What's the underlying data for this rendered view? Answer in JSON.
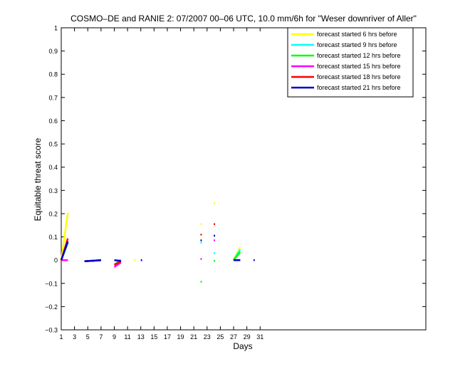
{
  "chart_data": {
    "type": "line",
    "title": "COSMO–DE and RANIE 2: 07/2007 00–06 UTC, 10.0 mm/6h for \"Weser downriver of Aller\"",
    "xlabel": "Days",
    "ylabel": "Equitable threat score",
    "xlim": [
      1,
      56
    ],
    "ylim": [
      -0.3,
      1
    ],
    "xticks": [
      1,
      3,
      5,
      7,
      9,
      11,
      13,
      15,
      17,
      19,
      21,
      23,
      25,
      27,
      29,
      31
    ],
    "yticks": [
      -0.3,
      -0.2,
      -0.1,
      0,
      0.1,
      0.2,
      0.3,
      0.4,
      0.5,
      0.6,
      0.7,
      0.8,
      0.9,
      1
    ],
    "ytick_labels": [
      "−0.3",
      "−0.2",
      "−0.1",
      "0",
      "0.1",
      "0.2",
      "0.3",
      "0.4",
      "0.5",
      "0.6",
      "0.7",
      "0.8",
      "0.9",
      "1"
    ],
    "legend_position": "top-right",
    "grid": false,
    "series": [
      {
        "name": "forecast started 6 hrs before",
        "color": "#ffff00",
        "segments": [
          [
            [
              1,
              0.0
            ],
            [
              2,
              0.205
            ]
          ],
          [
            [
              4.5,
              -0.005
            ],
            [
              7,
              0.0
            ]
          ],
          [
            [
              9,
              -0.02
            ],
            [
              10,
              0.0
            ]
          ],
          [
            [
              12,
              0.0
            ],
            [
              12.2,
              0.0
            ]
          ],
          [
            [
              22,
              0.155
            ],
            [
              22.2,
              0.155
            ]
          ],
          [
            [
              24,
              0.245
            ],
            [
              24.2,
              0.245
            ]
          ],
          [
            [
              27,
              0.0
            ],
            [
              28,
              0.055
            ]
          ]
        ]
      },
      {
        "name": "forecast started 9 hrs before",
        "color": "#00ffff",
        "segments": [
          [
            [
              1,
              0.0
            ],
            [
              2,
              0.08
            ]
          ],
          [
            [
              4.5,
              -0.005
            ],
            [
              7,
              0.0
            ]
          ],
          [
            [
              9,
              -0.02
            ],
            [
              10,
              0.0
            ]
          ],
          [
            [
              22,
              0.075
            ],
            [
              22.2,
              0.075
            ]
          ],
          [
            [
              24,
              0.03
            ],
            [
              24.2,
              0.03
            ]
          ],
          [
            [
              27,
              0.0
            ],
            [
              28,
              0.045
            ]
          ]
        ]
      },
      {
        "name": "forecast started 12 hrs before",
        "color": "#00ff00",
        "segments": [
          [
            [
              1,
              0.0
            ],
            [
              2,
              0.075
            ]
          ],
          [
            [
              4.5,
              -0.005
            ],
            [
              7,
              0.0
            ]
          ],
          [
            [
              9,
              -0.02
            ],
            [
              10,
              0.0
            ]
          ],
          [
            [
              22,
              -0.093
            ],
            [
              22.2,
              -0.093
            ]
          ],
          [
            [
              24,
              -0.003
            ],
            [
              24.2,
              -0.003
            ]
          ],
          [
            [
              27,
              0.0
            ],
            [
              28,
              0.035
            ]
          ]
        ]
      },
      {
        "name": "forecast started 15 hrs before",
        "color": "#ff00ff",
        "segments": [
          [
            [
              1,
              0.0
            ],
            [
              2,
              0.0
            ]
          ],
          [
            [
              4.5,
              -0.005
            ],
            [
              7,
              0.0
            ]
          ],
          [
            [
              9,
              -0.03
            ],
            [
              10,
              -0.01
            ]
          ],
          [
            [
              22,
              0.005
            ],
            [
              22.2,
              0.005
            ]
          ],
          [
            [
              24,
              0.085
            ],
            [
              24.2,
              0.085
            ]
          ],
          [
            [
              27,
              0.0
            ],
            [
              28,
              0.0
            ]
          ]
        ]
      },
      {
        "name": "forecast started 18 hrs before",
        "color": "#ff0000",
        "segments": [
          [
            [
              1,
              0.0
            ],
            [
              2,
              0.093
            ]
          ],
          [
            [
              4.5,
              -0.005
            ],
            [
              7,
              0.0
            ]
          ],
          [
            [
              9,
              -0.02
            ],
            [
              10,
              -0.005
            ]
          ],
          [
            [
              22,
              0.11
            ],
            [
              22.2,
              0.11
            ]
          ],
          [
            [
              24,
              0.155
            ],
            [
              24.2,
              0.155
            ]
          ],
          [
            [
              27,
              0.0
            ],
            [
              28,
              0.0
            ]
          ]
        ]
      },
      {
        "name": "forecast started 21 hrs before",
        "color": "#0000cc",
        "segments": [
          [
            [
              1,
              0.0
            ],
            [
              2,
              0.08
            ]
          ],
          [
            [
              4.5,
              -0.005
            ],
            [
              7,
              0.0
            ]
          ],
          [
            [
              9,
              0.0
            ],
            [
              10,
              -0.003
            ]
          ],
          [
            [
              13,
              0.0
            ],
            [
              13.2,
              0.0
            ]
          ],
          [
            [
              22,
              0.085
            ],
            [
              22.2,
              0.085
            ]
          ],
          [
            [
              24,
              0.105
            ],
            [
              24.2,
              0.105
            ]
          ],
          [
            [
              27,
              0.0
            ],
            [
              28,
              0.0
            ]
          ],
          [
            [
              30,
              0.0
            ],
            [
              30.2,
              0.0
            ]
          ]
        ]
      }
    ]
  }
}
